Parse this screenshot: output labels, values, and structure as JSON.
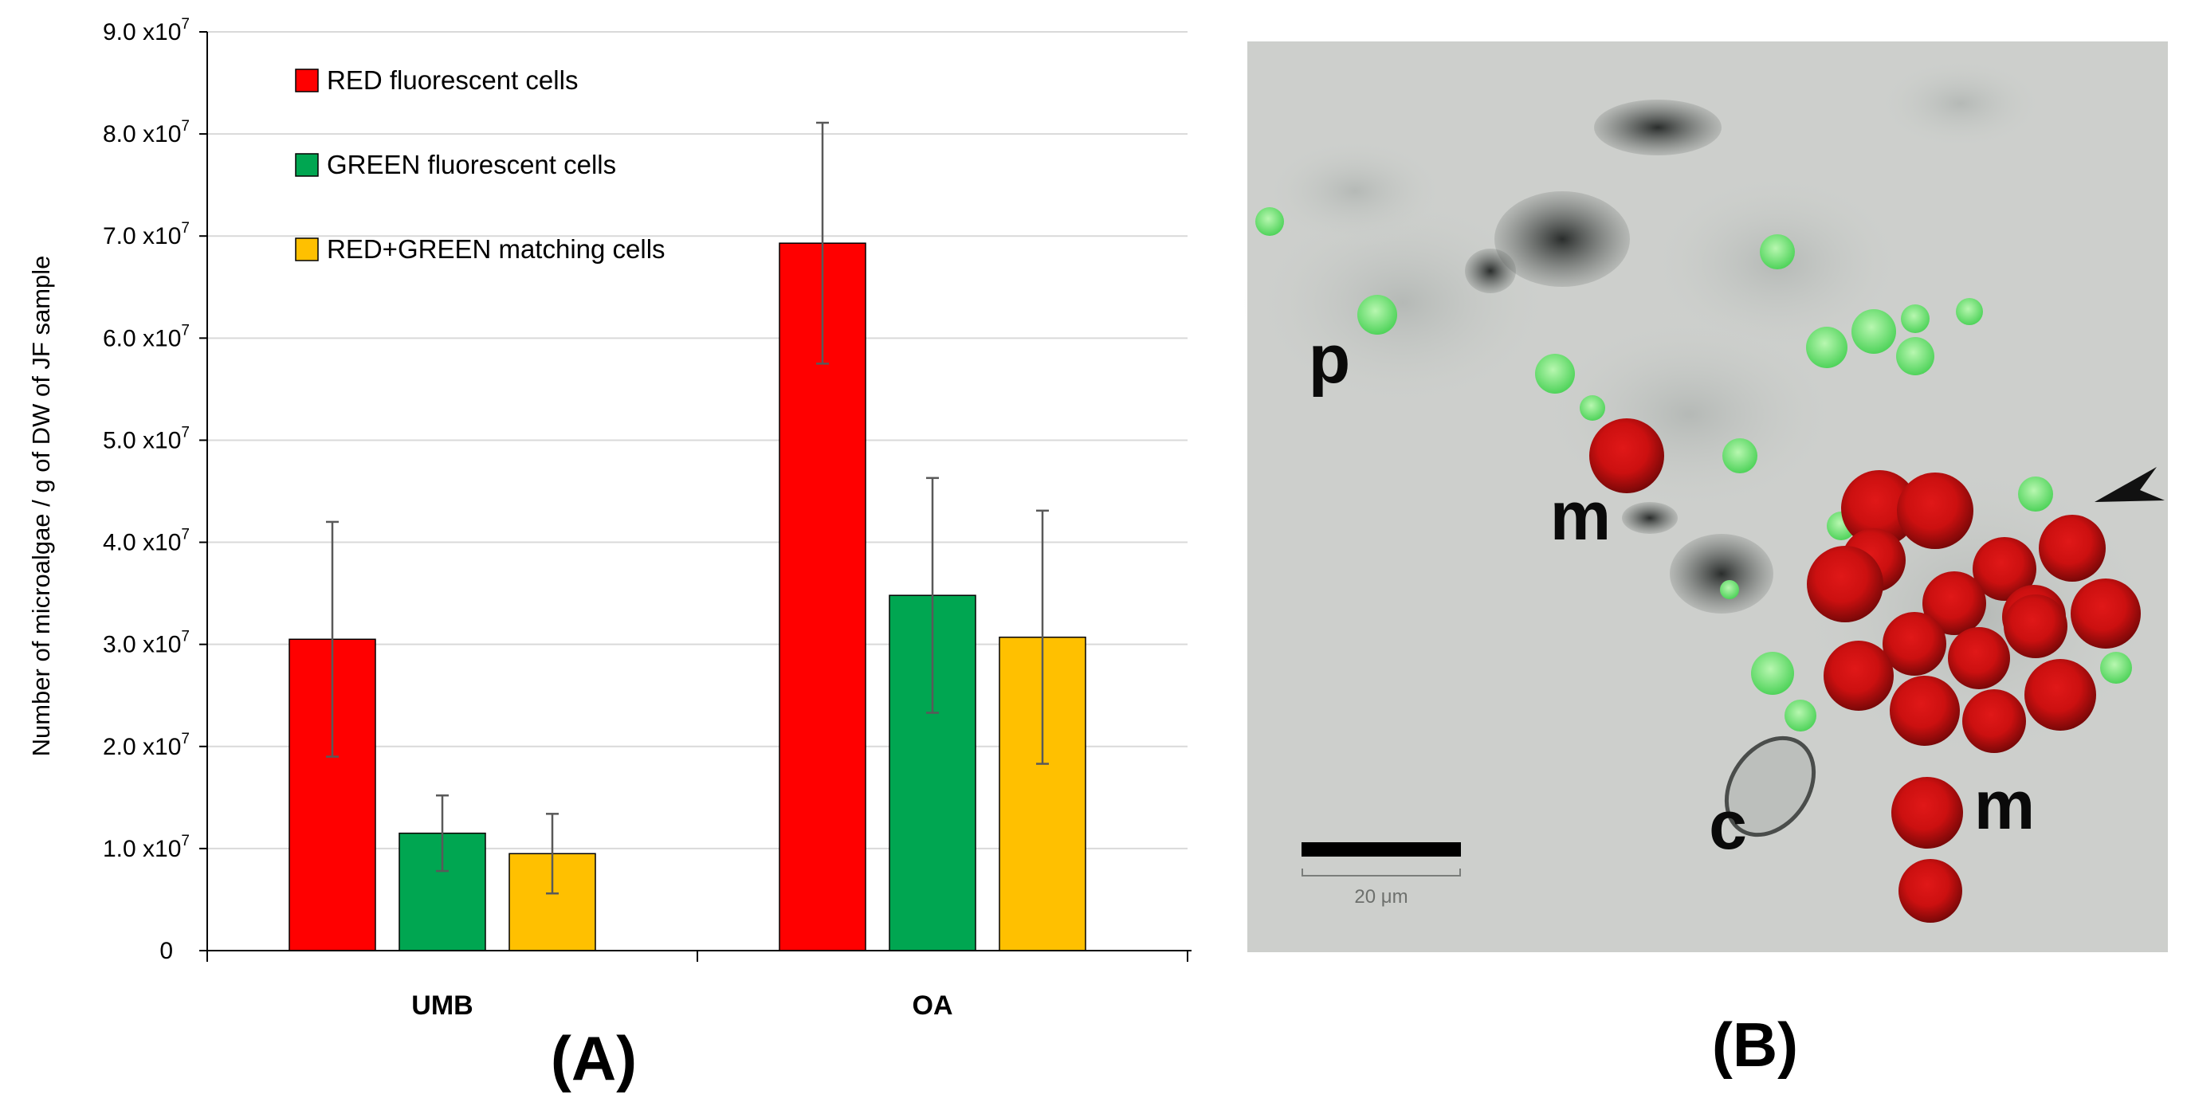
{
  "chart_data": {
    "type": "bar",
    "panel_label": "(A)",
    "categories": [
      "UMB",
      "OA"
    ],
    "series": [
      {
        "name": "RED fluorescent cells",
        "color": "#ff0000",
        "values": [
          30500000.0,
          69300000.0
        ],
        "errors": [
          11500000.0,
          11800000.0
        ]
      },
      {
        "name": "GREEN fluorescent cells",
        "color": "#00a651",
        "values": [
          11500000.0,
          34800000.0
        ],
        "errors": [
          3700000.0,
          11500000.0
        ]
      },
      {
        "name": "RED+GREEN  matching cells",
        "color": "#ffc000",
        "values": [
          9500000.0,
          30700000.0
        ],
        "errors": [
          3900000.0,
          12400000.0
        ]
      }
    ],
    "ylabel": "Number of microalgae / g of DW of JF sample",
    "ylim": [
      0,
      90000000.0
    ],
    "yticks": [
      {
        "mantissa": "0",
        "exp": ""
      },
      {
        "mantissa": "1.0 x10",
        "exp": "7"
      },
      {
        "mantissa": "2.0 x10",
        "exp": "7"
      },
      {
        "mantissa": "3.0 x10",
        "exp": "7"
      },
      {
        "mantissa": "4.0 x10",
        "exp": "7"
      },
      {
        "mantissa": "5.0 x10",
        "exp": "7"
      },
      {
        "mantissa": "6.0 x10",
        "exp": "7"
      },
      {
        "mantissa": "7.0 x10",
        "exp": "7"
      },
      {
        "mantissa": "8.0 x10",
        "exp": "7"
      },
      {
        "mantissa": "9.0 x10",
        "exp": "7"
      }
    ],
    "grid": true,
    "legend_position": "top-left"
  },
  "micrograph": {
    "panel_label": "(B)",
    "labels": [
      "p",
      "m",
      "m",
      "c"
    ],
    "scale_bar_text": "20 μm"
  }
}
